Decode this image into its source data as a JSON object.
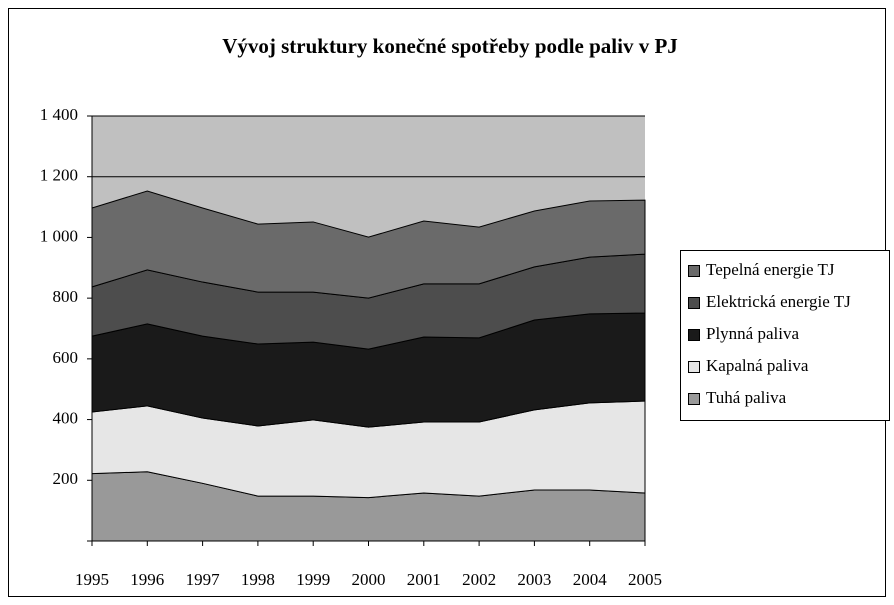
{
  "chart_data": {
    "type": "stacked_area",
    "title": "Vývoj struktury konečné spotřeby podle paliv v PJ",
    "categories": [
      "1995",
      "1996",
      "1997",
      "1998",
      "1999",
      "2000",
      "2001",
      "2002",
      "2003",
      "2004",
      "2005"
    ],
    "series": [
      {
        "name": "Tuhá paliva",
        "color": "#999999",
        "values": [
          222,
          228,
          190,
          148,
          148,
          143,
          158,
          148,
          168,
          168,
          158
        ]
      },
      {
        "name": "Kapalná paliva",
        "color": "#e6e6e6",
        "values": [
          203,
          217,
          215,
          231,
          251,
          232,
          234,
          244,
          264,
          287,
          303
        ]
      },
      {
        "name": "Plynná paliva",
        "color": "#1a1a1a",
        "values": [
          250,
          270,
          270,
          270,
          256,
          257,
          280,
          277,
          296,
          293,
          290
        ]
      },
      {
        "name": "Elektrická energie TJ",
        "color": "#4d4d4d",
        "values": [
          162,
          178,
          178,
          171,
          165,
          168,
          175,
          178,
          175,
          187,
          194
        ]
      },
      {
        "name": "Tepelná energie TJ",
        "color": "#6a6a6a",
        "values": [
          260,
          260,
          244,
          224,
          231,
          201,
          207,
          187,
          184,
          185,
          178
        ]
      }
    ],
    "ylim": [
      0,
      1400
    ],
    "yticks": [
      {
        "value": 200,
        "label": "200"
      },
      {
        "value": 400,
        "label": "400"
      },
      {
        "value": 600,
        "label": "600"
      },
      {
        "value": 800,
        "label": "800"
      },
      {
        "value": 1000,
        "label": "1 000"
      },
      {
        "value": 1200,
        "label": "1 200"
      },
      {
        "value": 1400,
        "label": "1 400"
      }
    ],
    "plot_background": "#c0c0c0",
    "grid": true,
    "legend": "right"
  }
}
